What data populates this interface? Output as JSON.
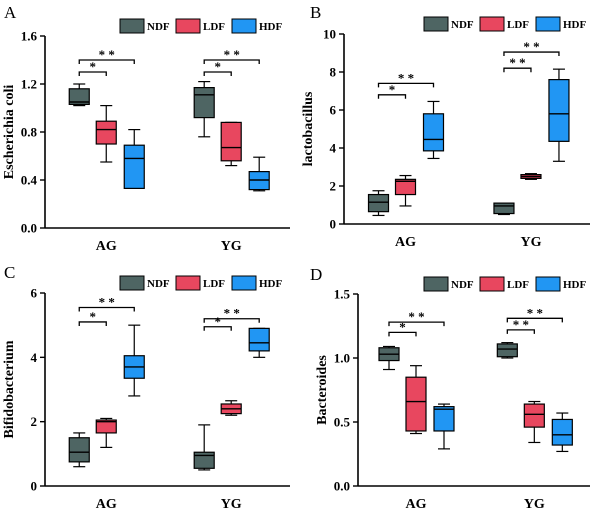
{
  "colors": {
    "NDF": "#4e6563",
    "LDF": "#e8475f",
    "HDF": "#2196f3"
  },
  "legend": [
    "NDF",
    "LDF",
    "HDF"
  ],
  "star_label": "*",
  "double_star_label": "* *",
  "chart_data": [
    {
      "panel": "A",
      "type": "box",
      "ylabel": "Escherichia coli",
      "ylim": [
        0,
        1.6
      ],
      "yticks": [
        "0.0",
        "0.4",
        "0.8",
        "1.2",
        "1.6"
      ],
      "categories": [
        "AG",
        "YG"
      ],
      "series": [
        {
          "name": "NDF",
          "boxes": [
            {
              "min": 1.02,
              "q1": 1.03,
              "median": 1.05,
              "q3": 1.16,
              "max": 1.2
            },
            {
              "min": 0.76,
              "q1": 0.92,
              "median": 1.11,
              "q3": 1.17,
              "max": 1.22
            }
          ]
        },
        {
          "name": "LDF",
          "boxes": [
            {
              "min": 0.55,
              "q1": 0.7,
              "median": 0.82,
              "q3": 0.89,
              "max": 1.02
            },
            {
              "min": 0.52,
              "q1": 0.56,
              "median": 0.67,
              "q3": 0.88,
              "max": 0.88
            }
          ]
        },
        {
          "name": "HDF",
          "boxes": [
            {
              "min": 0.33,
              "q1": 0.33,
              "median": 0.58,
              "q3": 0.69,
              "max": 0.82
            },
            {
              "min": 0.31,
              "q1": 0.32,
              "median": 0.4,
              "q3": 0.47,
              "max": 0.59
            }
          ]
        }
      ],
      "significance": [
        {
          "group": "AG",
          "from": "NDF",
          "to": "LDF",
          "label": "*",
          "y": 1.3
        },
        {
          "group": "AG",
          "from": "NDF",
          "to": "HDF",
          "label": "* *",
          "y": 1.4
        },
        {
          "group": "YG",
          "from": "NDF",
          "to": "LDF",
          "label": "*",
          "y": 1.3
        },
        {
          "group": "YG",
          "from": "NDF",
          "to": "HDF",
          "label": "* *",
          "y": 1.4
        }
      ]
    },
    {
      "panel": "B",
      "type": "box",
      "ylabel": "lactobacillus",
      "ylim": [
        0,
        10
      ],
      "yticks": [
        "0",
        "2",
        "4",
        "6",
        "8",
        "10"
      ],
      "categories": [
        "AG",
        "YG"
      ],
      "series": [
        {
          "name": "NDF",
          "boxes": [
            {
              "min": 0.45,
              "q1": 0.65,
              "median": 1.15,
              "q3": 1.55,
              "max": 1.75
            },
            {
              "min": 0.5,
              "q1": 0.55,
              "median": 0.95,
              "q3": 1.1,
              "max": 1.1
            }
          ]
        },
        {
          "name": "LDF",
          "boxes": [
            {
              "min": 0.95,
              "q1": 1.55,
              "median": 2.25,
              "q3": 2.35,
              "max": 2.55
            },
            {
              "min": 2.35,
              "q1": 2.4,
              "median": 2.5,
              "q3": 2.6,
              "max": 2.65
            }
          ]
        },
        {
          "name": "HDF",
          "boxes": [
            {
              "min": 3.45,
              "q1": 3.85,
              "median": 4.45,
              "q3": 5.8,
              "max": 6.45
            },
            {
              "min": 3.3,
              "q1": 4.35,
              "median": 5.8,
              "q3": 7.6,
              "max": 8.15
            }
          ]
        }
      ],
      "significance": [
        {
          "group": "AG",
          "from": "NDF",
          "to": "LDF",
          "label": "*",
          "y": 6.8
        },
        {
          "group": "AG",
          "from": "NDF",
          "to": "HDF",
          "label": "* *",
          "y": 7.4
        },
        {
          "group": "YG",
          "from": "NDF",
          "to": "LDF",
          "label": "* *",
          "y": 8.2
        },
        {
          "group": "YG",
          "from": "NDF",
          "to": "HDF",
          "label": "* *",
          "y": 9.05
        }
      ]
    },
    {
      "panel": "C",
      "type": "box",
      "ylabel": "Bifidobacterium",
      "ylim": [
        0,
        6
      ],
      "yticks": [
        "0",
        "2",
        "4",
        "6"
      ],
      "categories": [
        "AG",
        "YG"
      ],
      "series": [
        {
          "name": "NDF",
          "boxes": [
            {
              "min": 0.6,
              "q1": 0.75,
              "median": 1.05,
              "q3": 1.5,
              "max": 1.65
            },
            {
              "min": 0.5,
              "q1": 0.55,
              "median": 0.95,
              "q3": 1.05,
              "max": 1.9
            }
          ]
        },
        {
          "name": "LDF",
          "boxes": [
            {
              "min": 1.2,
              "q1": 1.65,
              "median": 2.0,
              "q3": 2.05,
              "max": 2.1
            },
            {
              "min": 2.2,
              "q1": 2.25,
              "median": 2.4,
              "q3": 2.55,
              "max": 2.65
            }
          ]
        },
        {
          "name": "HDF",
          "boxes": [
            {
              "min": 2.8,
              "q1": 3.35,
              "median": 3.7,
              "q3": 4.05,
              "max": 5.0
            },
            {
              "min": 4.0,
              "q1": 4.2,
              "median": 4.45,
              "q3": 4.9,
              "max": 4.9
            }
          ]
        }
      ],
      "significance": [
        {
          "group": "AG",
          "from": "NDF",
          "to": "LDF",
          "label": "*",
          "y": 5.1
        },
        {
          "group": "AG",
          "from": "NDF",
          "to": "HDF",
          "label": "* *",
          "y": 5.55
        },
        {
          "group": "YG",
          "from": "NDF",
          "to": "LDF",
          "label": "*",
          "y": 4.95
        },
        {
          "group": "YG",
          "from": "NDF",
          "to": "HDF",
          "label": "* *",
          "y": 5.2
        }
      ]
    },
    {
      "panel": "D",
      "type": "box",
      "ylabel": "Bacteroides",
      "ylim": [
        0,
        1.5
      ],
      "yticks": [
        "0.0",
        "0.5",
        "1.0",
        "1.5"
      ],
      "categories": [
        "AG",
        "YG"
      ],
      "series": [
        {
          "name": "NDF",
          "boxes": [
            {
              "min": 0.91,
              "q1": 0.98,
              "median": 1.03,
              "q3": 1.08,
              "max": 1.09
            },
            {
              "min": 1.0,
              "q1": 1.01,
              "median": 1.07,
              "q3": 1.11,
              "max": 1.12
            }
          ]
        },
        {
          "name": "LDF",
          "boxes": [
            {
              "min": 0.41,
              "q1": 0.43,
              "median": 0.66,
              "q3": 0.85,
              "max": 0.94
            },
            {
              "min": 0.34,
              "q1": 0.46,
              "median": 0.56,
              "q3": 0.64,
              "max": 0.66
            }
          ]
        },
        {
          "name": "HDF",
          "boxes": [
            {
              "min": 0.29,
              "q1": 0.43,
              "median": 0.6,
              "q3": 0.62,
              "max": 0.64
            },
            {
              "min": 0.27,
              "q1": 0.32,
              "median": 0.4,
              "q3": 0.52,
              "max": 0.57
            }
          ]
        }
      ],
      "significance": [
        {
          "group": "AG",
          "from": "NDF",
          "to": "LDF",
          "label": "*",
          "y": 1.2
        },
        {
          "group": "AG",
          "from": "NDF",
          "to": "HDF",
          "label": "* *",
          "y": 1.28
        },
        {
          "group": "YG",
          "from": "NDF",
          "to": "LDF",
          "label": "* *",
          "y": 1.22
        },
        {
          "group": "YG",
          "from": "NDF",
          "to": "HDF",
          "label": "* *",
          "y": 1.31
        }
      ]
    }
  ]
}
